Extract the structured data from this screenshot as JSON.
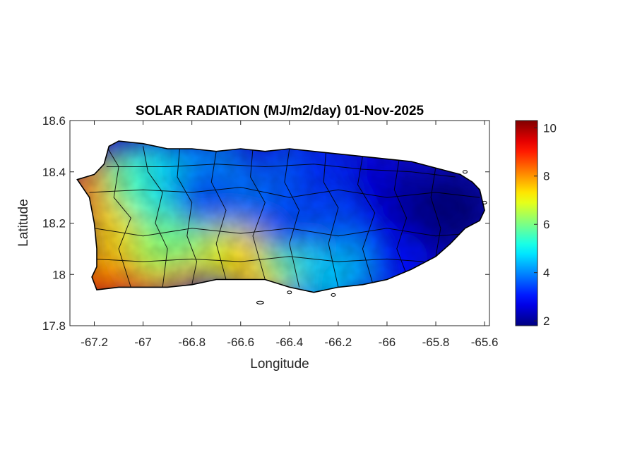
{
  "chart_data": {
    "type": "heatmap",
    "title": "SOLAR RADIATION (MJ/m2/day) 01-Nov-2025",
    "xlabel": "Longitude",
    "ylabel": "Latitude",
    "xlim": [
      -67.3,
      -65.58
    ],
    "ylim": [
      17.8,
      18.6
    ],
    "x_ticks": [
      -67.2,
      -67,
      -66.8,
      -66.6,
      -66.4,
      -66.2,
      -66,
      -65.8,
      -65.6
    ],
    "x_tick_labels": [
      "-67.2",
      "-67",
      "-66.8",
      "-66.6",
      "-66.4",
      "-66.2",
      "-66",
      "-65.8",
      "-65.6"
    ],
    "y_ticks": [
      17.8,
      18,
      18.2,
      18.4,
      18.6
    ],
    "y_tick_labels": [
      "17.8",
      "18",
      "18.2",
      "18.4",
      "18.6"
    ],
    "colorbar": {
      "colormap": "jet",
      "limits": [
        1.8,
        10.3
      ],
      "ticks": [
        2,
        4,
        6,
        8,
        10
      ],
      "tick_labels": [
        "2",
        "4",
        "6",
        "8",
        "10"
      ],
      "colors": [
        "#00008f",
        "#0000ff",
        "#00ffff",
        "#ffff00",
        "#ff0000",
        "#800000"
      ]
    },
    "island_outline_lonlat": [
      [
        -67.27,
        18.37
      ],
      [
        -67.2,
        18.39
      ],
      [
        -67.16,
        18.43
      ],
      [
        -67.14,
        18.5
      ],
      [
        -67.1,
        18.52
      ],
      [
        -67.0,
        18.51
      ],
      [
        -66.9,
        18.49
      ],
      [
        -66.8,
        18.49
      ],
      [
        -66.7,
        18.48
      ],
      [
        -66.6,
        18.49
      ],
      [
        -66.5,
        18.48
      ],
      [
        -66.4,
        18.49
      ],
      [
        -66.3,
        18.48
      ],
      [
        -66.2,
        18.47
      ],
      [
        -66.1,
        18.46
      ],
      [
        -66.0,
        18.45
      ],
      [
        -65.9,
        18.44
      ],
      [
        -65.82,
        18.42
      ],
      [
        -65.7,
        18.39
      ],
      [
        -65.65,
        18.36
      ],
      [
        -65.62,
        18.33
      ],
      [
        -65.6,
        18.25
      ],
      [
        -65.62,
        18.21
      ],
      [
        -65.68,
        18.18
      ],
      [
        -65.74,
        18.12
      ],
      [
        -65.8,
        18.07
      ],
      [
        -65.9,
        18.02
      ],
      [
        -66.0,
        17.98
      ],
      [
        -66.1,
        17.96
      ],
      [
        -66.2,
        17.95
      ],
      [
        -66.3,
        17.93
      ],
      [
        -66.4,
        17.95
      ],
      [
        -66.5,
        17.98
      ],
      [
        -66.6,
        17.98
      ],
      [
        -66.7,
        17.98
      ],
      [
        -66.8,
        17.96
      ],
      [
        -66.9,
        17.95
      ],
      [
        -67.0,
        17.95
      ],
      [
        -67.1,
        17.95
      ],
      [
        -67.19,
        17.94
      ],
      [
        -67.21,
        17.99
      ],
      [
        -67.19,
        18.03
      ],
      [
        -67.19,
        18.1
      ],
      [
        -67.2,
        18.2
      ],
      [
        -67.22,
        18.3
      ],
      [
        -67.27,
        18.37
      ]
    ],
    "radiation_field_lonlat_value": [
      [
        -67.2,
        17.97,
        10.0
      ],
      [
        -67.15,
        18.02,
        8.8
      ],
      [
        -67.2,
        18.35,
        8.2
      ],
      [
        -67.15,
        18.25,
        8.0
      ],
      [
        -67.05,
        18.2,
        7.0
      ],
      [
        -67.1,
        18.1,
        7.5
      ],
      [
        -67.0,
        18.0,
        8.5
      ],
      [
        -66.85,
        18.05,
        7.8
      ],
      [
        -66.95,
        18.1,
        6.5
      ],
      [
        -66.85,
        18.15,
        6.0
      ],
      [
        -67.05,
        18.38,
        6.0
      ],
      [
        -66.95,
        18.4,
        5.2
      ],
      [
        -66.95,
        18.3,
        5.4
      ],
      [
        -66.85,
        18.38,
        4.6
      ],
      [
        -66.7,
        18.42,
        4.0
      ],
      [
        -66.6,
        18.2,
        3.2
      ],
      [
        -66.55,
        18.3,
        3.8
      ],
      [
        -66.65,
        18.08,
        6.8
      ],
      [
        -66.5,
        18.0,
        7.8
      ],
      [
        -66.55,
        18.05,
        7.5
      ],
      [
        -66.4,
        18.07,
        6.0
      ],
      [
        -66.3,
        18.0,
        5.5
      ],
      [
        -66.4,
        18.2,
        3.5
      ],
      [
        -66.4,
        18.4,
        3.6
      ],
      [
        -66.25,
        18.4,
        3.2
      ],
      [
        -66.2,
        18.2,
        3.5
      ],
      [
        -66.1,
        18.05,
        4.2
      ],
      [
        -66.05,
        18.35,
        2.6
      ],
      [
        -66.0,
        18.2,
        2.8
      ],
      [
        -65.9,
        18.3,
        2.2
      ],
      [
        -65.85,
        18.15,
        2.0
      ],
      [
        -65.75,
        18.3,
        1.9
      ],
      [
        -65.7,
        18.25,
        1.8
      ],
      [
        -65.95,
        18.05,
        3.0
      ],
      [
        -66.25,
        17.98,
        4.5
      ],
      [
        -66.75,
        18.3,
        3.6
      ]
    ]
  }
}
